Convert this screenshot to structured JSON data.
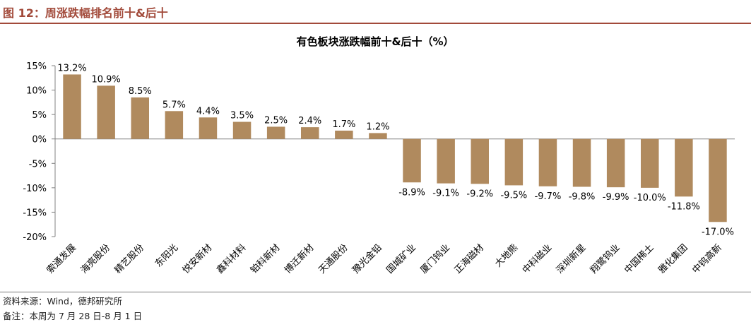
{
  "figure": {
    "label": "图 12：周涨跌幅排名前十&后十",
    "source": "资料来源：Wind，德邦研究所",
    "note": "备注：本周为 7 月 28 日-8 月 1 日"
  },
  "colors": {
    "bar": "#b08a5e",
    "header_accent": "#a24a3a",
    "axis": "#808080"
  },
  "chart_data": {
    "type": "bar",
    "title": "有色板块涨跌幅前十&后十（%）",
    "xlabel": "",
    "ylabel": "",
    "ylim": [
      -20,
      15
    ],
    "yticks": [
      15,
      10,
      5,
      0,
      -5,
      -10,
      -15,
      -20
    ],
    "ytick_labels": [
      "15%",
      "10%",
      "5%",
      "0%",
      "-5%",
      "-10%",
      "-15%",
      "-20%"
    ],
    "grid": false,
    "legend": "none",
    "categories": [
      "索通发展",
      "海亮股份",
      "精艺股份",
      "东阳光",
      "悦安新材",
      "鑫科材料",
      "铂科新材",
      "博迁新材",
      "天通股份",
      "豫光金铅",
      "国城矿业",
      "厦门钨业",
      "正海磁材",
      "大地熊",
      "中科磁业",
      "深圳新星",
      "翔鹭钨业",
      "中国稀土",
      "雅化集团",
      "中钨高新"
    ],
    "values": [
      13.2,
      10.9,
      8.5,
      5.7,
      4.4,
      3.5,
      2.5,
      2.4,
      1.7,
      1.2,
      -8.9,
      -9.1,
      -9.2,
      -9.5,
      -9.7,
      -9.8,
      -9.9,
      -10.0,
      -11.8,
      -17.0
    ],
    "data_labels": [
      "13.2%",
      "10.9%",
      "8.5%",
      "5.7%",
      "4.4%",
      "3.5%",
      "2.5%",
      "2.4%",
      "1.7%",
      "1.2%",
      "-8.9%",
      "-9.1%",
      "-9.2%",
      "-9.5%",
      "-9.7%",
      "-9.8%",
      "-9.9%",
      "-10.0%",
      "-11.8%",
      "-17.0%"
    ]
  }
}
